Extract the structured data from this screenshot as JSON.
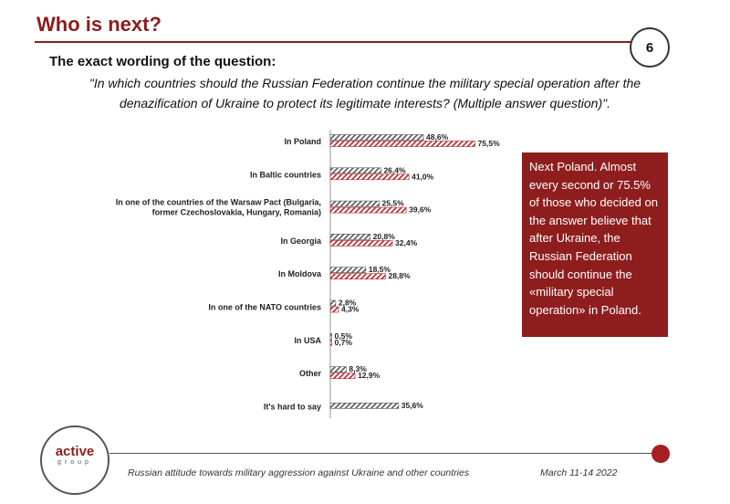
{
  "page": {
    "title": "Who is next?",
    "page_number": "6",
    "question_label": "The exact wording of the question:",
    "question_text": "\"In which countries should the Russian Federation continue the military special operation after the denazification of Ukraine to protect its legitimate interests? (Multiple answer question)\".",
    "note": "Next Poland. Almost every second or 75.5% of those who decided on the answer believe that after Ukraine, the Russian Federation should continue the «military special operation» in Poland.",
    "footer_left": "Russian attitude towards military aggression against Ukraine and other countries",
    "footer_right": "March 11-14 2022",
    "logo_main": "active",
    "logo_sub": "group"
  },
  "colors": {
    "accent": "#8c1c1c",
    "note_bg": "#8e1e1e",
    "series_a_stripe": "#555555",
    "series_b_stripe": "#b0272d"
  },
  "chart_data": {
    "type": "bar",
    "orientation": "horizontal",
    "categories": [
      [
        "In Poland"
      ],
      [
        "In Baltic countries"
      ],
      [
        "In one of the countries of the Warsaw Pact (Bulgaria,",
        "former Czechoslovakia, Hungary, Romania)"
      ],
      [
        "In Georgia"
      ],
      [
        "In Moldova"
      ],
      [
        "In one of the NATO countries"
      ],
      [
        "In USA"
      ],
      [
        "Other"
      ],
      [
        "It's hard to say"
      ]
    ],
    "series": [
      {
        "values": [
          48.6,
          26.4,
          25.5,
          20.8,
          18.5,
          2.8,
          0.5,
          8.3,
          35.6
        ],
        "labels": [
          "48,6%",
          "26,4%",
          "25,5%",
          "20,8%",
          "18,5%",
          "2,8%",
          "0,5%",
          "8,3%",
          "35,6%"
        ]
      },
      {
        "values": [
          75.5,
          41.0,
          39.6,
          32.4,
          28.8,
          4.3,
          0.7,
          12.9,
          null
        ],
        "labels": [
          "75,5%",
          "41,0%",
          "39,6%",
          "32,4%",
          "28,8%",
          "4,3%",
          "0,7%",
          "12,9%",
          ""
        ]
      }
    ],
    "xlim": [
      0,
      100
    ],
    "grid": false,
    "legend": "none"
  }
}
